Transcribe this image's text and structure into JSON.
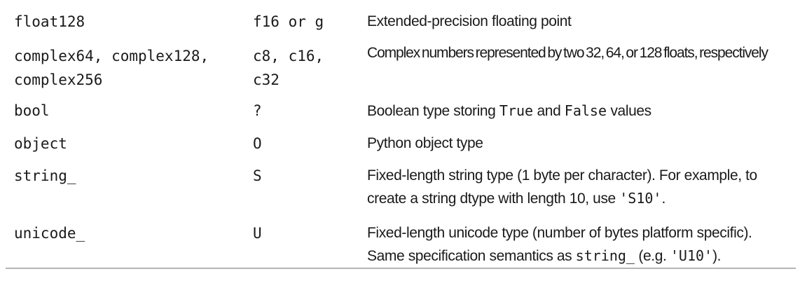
{
  "rows": [
    {
      "type": "float128",
      "code": "f16 or g",
      "description": "Extended-precision floating point"
    },
    {
      "type": "complex64, complex128,\ncomplex256",
      "code": "c8, c16,\nc32",
      "description": "Complex numbers represented by two 32, 64, or 128 floats, respectively"
    },
    {
      "type": "bool",
      "code": "?",
      "description_parts": [
        "Boolean type storing ",
        "True",
        " and ",
        "False",
        " values"
      ]
    },
    {
      "type": "object",
      "code": "O",
      "description": "Python object type"
    },
    {
      "type": "string_",
      "code": "S",
      "description_parts": [
        "Fixed-length string type (1 byte per character). For example, to create a string dtype with length 10, use ",
        "'S10'",
        "."
      ]
    },
    {
      "type": "unicode_",
      "code": "U",
      "description_parts": [
        "Fixed-length unicode type (number of bytes platform specific). Same specification semantics as ",
        "string_",
        " (e.g. ",
        "'U10'",
        ")."
      ]
    }
  ]
}
